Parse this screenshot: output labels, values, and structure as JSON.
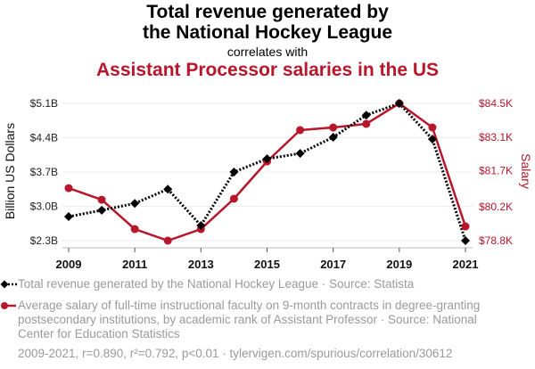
{
  "header": {
    "title_line1": "Total revenue generated by",
    "title_line2": "the National Hockey League",
    "connector": "correlates with",
    "title2": "Assistant Processor salaries in the US"
  },
  "legend": {
    "series1": "Total revenue generated by the National Hockey League · Source: Statista",
    "series2": "Average salary of full-time instructional faculty on 9-month contracts in degree-granting postsecondary institutions, by academic rank of Assistant Professor · Source: National Center for Education Statistics"
  },
  "footer": "2009-2021, r=0.890, r²=0.792, p<0.01 · tylervigen.com/spurious/correlation/30612",
  "colors": {
    "series1": "#000000",
    "series2": "#b8162b",
    "grid": "#eeeeee",
    "axis": "#bbbbbb"
  },
  "chart_data": {
    "type": "line",
    "title": "Total revenue generated by the National Hockey League correlates with Assistant Processor salaries in the US",
    "x": [
      2009,
      2010,
      2011,
      2012,
      2013,
      2014,
      2015,
      2016,
      2017,
      2018,
      2019,
      2020,
      2021
    ],
    "xticks": [
      "2009",
      "2011",
      "2013",
      "2015",
      "2017",
      "2019",
      "2021"
    ],
    "ylabel": "Billion US Dollars",
    "y2label": "Salary",
    "ylim": [
      2.3,
      5.1
    ],
    "y2lim": [
      78.8,
      84.5
    ],
    "yticks": [
      "$2.3B",
      "$3.0B",
      "$3.7B",
      "$4.4B",
      "$5.1B"
    ],
    "ytick_values": [
      2.3,
      3.0,
      3.7,
      4.4,
      5.1
    ],
    "y2ticks": [
      "$78.8K",
      "$80.2K",
      "$81.7K",
      "$83.1K",
      "$84.5K"
    ],
    "y2tick_values": [
      78.8,
      80.2,
      81.7,
      83.1,
      84.5
    ],
    "grid": true,
    "legend_position": "bottom",
    "series": [
      {
        "name": "Total revenue generated by the National Hockey League",
        "axis": "left",
        "unit": "Billion US Dollars",
        "marker": "diamond",
        "line": "dotted",
        "values": [
          2.79,
          2.92,
          3.06,
          3.35,
          2.61,
          3.7,
          3.97,
          4.08,
          4.41,
          4.86,
          5.1,
          4.37,
          2.3
        ]
      },
      {
        "name": "Average salary of full-time instructional faculty (Assistant Professor)",
        "axis": "right",
        "unit": "Thousand US Dollars",
        "marker": "circle",
        "line": "solid",
        "values": [
          80.98,
          80.5,
          79.28,
          78.8,
          79.28,
          80.54,
          82.09,
          83.39,
          83.5,
          83.65,
          84.5,
          83.5,
          79.39
        ]
      }
    ]
  }
}
